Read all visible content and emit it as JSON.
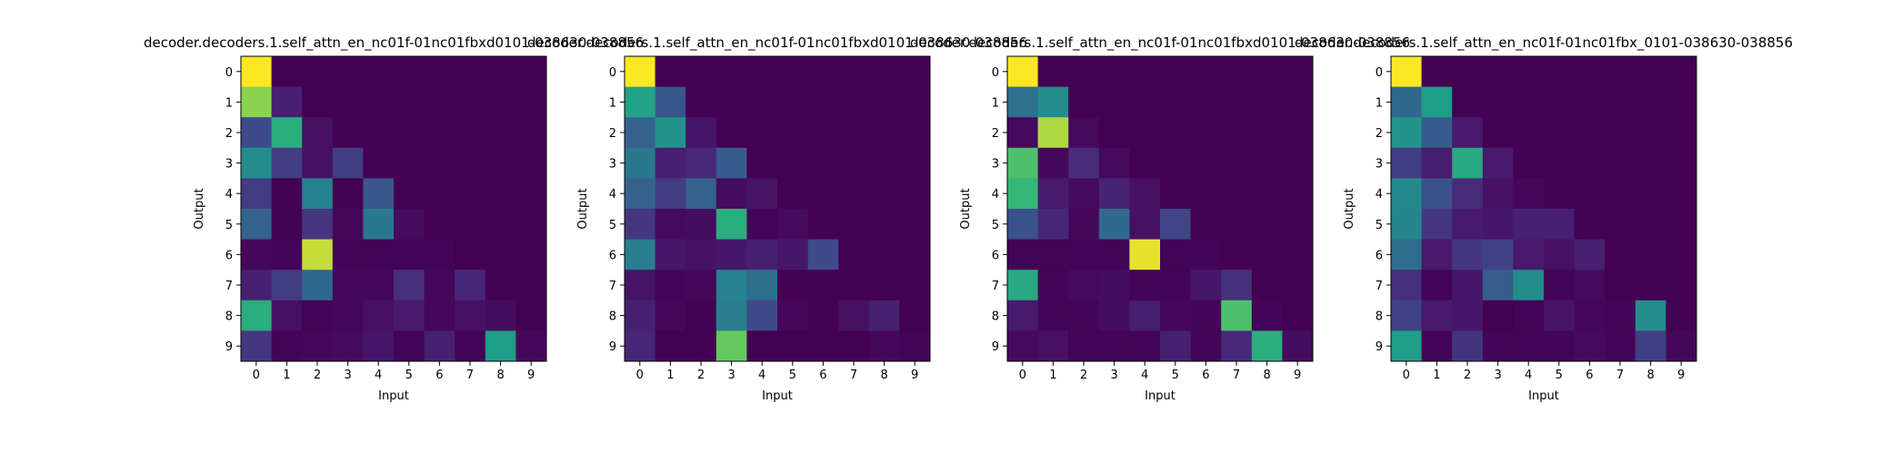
{
  "figure": {
    "background": "#ffffff"
  },
  "chart_data": [
    {
      "type": "heatmap",
      "title": "decoder.decoders.1.self_attn_en_nc01f-01nc01fbxd0101-038630-038856",
      "xlabel": "Input",
      "ylabel": "Output",
      "x_ticks": [
        "0",
        "1",
        "2",
        "3",
        "4",
        "5",
        "6",
        "7",
        "8",
        "9"
      ],
      "y_ticks": [
        "0",
        "1",
        "2",
        "3",
        "4",
        "5",
        "6",
        "7",
        "8",
        "9"
      ],
      "colormap": "viridis",
      "vmin": 0,
      "vmax": 1,
      "values": [
        [
          1.0,
          0,
          0,
          0,
          0,
          0,
          0,
          0,
          0,
          0
        ],
        [
          0.9,
          0.1,
          0,
          0,
          0,
          0,
          0,
          0,
          0,
          0
        ],
        [
          0.25,
          0.7,
          0.05,
          0,
          0,
          0,
          0,
          0,
          0,
          0
        ],
        [
          0.55,
          0.2,
          0.05,
          0.2,
          0,
          0,
          0,
          0,
          0,
          0
        ],
        [
          0.2,
          0.0,
          0.5,
          0.0,
          0.3,
          0,
          0,
          0,
          0,
          0
        ],
        [
          0.35,
          0.0,
          0.18,
          0.02,
          0.45,
          0.03,
          0,
          0,
          0,
          0
        ],
        [
          0.02,
          0.01,
          0.95,
          0.01,
          0.01,
          0.01,
          0.01,
          0,
          0,
          0
        ],
        [
          0.1,
          0.2,
          0.38,
          0.02,
          0.02,
          0.15,
          0.02,
          0.12,
          0,
          0
        ],
        [
          0.7,
          0.05,
          0.01,
          0.02,
          0.05,
          0.08,
          0.02,
          0.05,
          0.04,
          0
        ],
        [
          0.18,
          0.01,
          0.02,
          0.03,
          0.07,
          0.01,
          0.1,
          0.01,
          0.62,
          0.02
        ]
      ]
    },
    {
      "type": "heatmap",
      "title": "decoder.decoders.1.self_attn_en_nc01f-01nc01fbxd0101-038630-038856",
      "xlabel": "Input",
      "ylabel": "Output",
      "x_ticks": [
        "0",
        "1",
        "2",
        "3",
        "4",
        "5",
        "6",
        "7",
        "8",
        "9"
      ],
      "y_ticks": [
        "0",
        "1",
        "2",
        "3",
        "4",
        "5",
        "6",
        "7",
        "8",
        "9"
      ],
      "colormap": "viridis",
      "vmin": 0,
      "vmax": 1,
      "values": [
        [
          1.0,
          0,
          0,
          0,
          0,
          0,
          0,
          0,
          0,
          0
        ],
        [
          0.65,
          0.3,
          0,
          0,
          0,
          0,
          0,
          0,
          0,
          0
        ],
        [
          0.35,
          0.58,
          0.07,
          0,
          0,
          0,
          0,
          0,
          0,
          0
        ],
        [
          0.45,
          0.1,
          0.13,
          0.32,
          0,
          0,
          0,
          0,
          0,
          0
        ],
        [
          0.35,
          0.2,
          0.35,
          0.04,
          0.06,
          0,
          0,
          0,
          0,
          0
        ],
        [
          0.18,
          0.03,
          0.04,
          0.7,
          0.01,
          0.03,
          0,
          0,
          0,
          0
        ],
        [
          0.48,
          0.07,
          0.05,
          0.07,
          0.1,
          0.07,
          0.25,
          0,
          0,
          0
        ],
        [
          0.06,
          0.01,
          0.02,
          0.5,
          0.41,
          0.0,
          0.0,
          0.0,
          0,
          0
        ],
        [
          0.1,
          0.02,
          0.0,
          0.48,
          0.25,
          0.02,
          0.0,
          0.05,
          0.1,
          0
        ],
        [
          0.12,
          0.0,
          0.0,
          0.85,
          0.0,
          0.0,
          0.0,
          0.0,
          0.02,
          0.01
        ]
      ]
    },
    {
      "type": "heatmap",
      "title": "decoder.decoders.1.self_attn_en_nc01f-01nc01fbxd0101-038630-038856",
      "xlabel": "Input",
      "ylabel": "Output",
      "x_ticks": [
        "0",
        "1",
        "2",
        "3",
        "4",
        "5",
        "6",
        "7",
        "8",
        "9"
      ],
      "y_ticks": [
        "0",
        "1",
        "2",
        "3",
        "4",
        "5",
        "6",
        "7",
        "8",
        "9"
      ],
      "colormap": "viridis",
      "vmin": 0,
      "vmax": 1,
      "values": [
        [
          1.0,
          0,
          0,
          0,
          0,
          0,
          0,
          0,
          0,
          0
        ],
        [
          0.42,
          0.55,
          0,
          0,
          0,
          0,
          0,
          0,
          0,
          0
        ],
        [
          0.03,
          0.93,
          0.03,
          0,
          0,
          0,
          0,
          0,
          0,
          0
        ],
        [
          0.8,
          0.02,
          0.14,
          0.03,
          0,
          0,
          0,
          0,
          0,
          0
        ],
        [
          0.75,
          0.08,
          0.03,
          0.11,
          0.05,
          0,
          0,
          0,
          0,
          0
        ],
        [
          0.28,
          0.12,
          0.02,
          0.38,
          0.05,
          0.23,
          0,
          0,
          0,
          0
        ],
        [
          0.01,
          0.01,
          0.01,
          0.01,
          0.98,
          0.01,
          0.01,
          0,
          0,
          0
        ],
        [
          0.68,
          0.01,
          0.03,
          0.04,
          0.01,
          0.01,
          0.07,
          0.16,
          0,
          0
        ],
        [
          0.08,
          0.01,
          0.01,
          0.04,
          0.09,
          0.02,
          0.01,
          0.8,
          0.01,
          0
        ],
        [
          0.03,
          0.05,
          0.01,
          0.01,
          0.01,
          0.1,
          0.01,
          0.13,
          0.7,
          0.04
        ]
      ]
    },
    {
      "type": "heatmap",
      "title": "decoder.decoders.1.self_attn_en_nc01f-01nc01fbx_0101-038630-038856",
      "xlabel": "Input",
      "ylabel": "Output",
      "x_ticks": [
        "0",
        "1",
        "2",
        "3",
        "4",
        "5",
        "6",
        "7",
        "8",
        "9"
      ],
      "y_ticks": [
        "0",
        "1",
        "2",
        "3",
        "4",
        "5",
        "6",
        "7",
        "8",
        "9"
      ],
      "colormap": "viridis",
      "vmin": 0,
      "vmax": 1,
      "values": [
        [
          1.0,
          0,
          0,
          0,
          0,
          0,
          0,
          0,
          0,
          0
        ],
        [
          0.38,
          0.62,
          0,
          0,
          0,
          0,
          0,
          0,
          0,
          0
        ],
        [
          0.58,
          0.32,
          0.08,
          0,
          0,
          0,
          0,
          0,
          0,
          0
        ],
        [
          0.2,
          0.09,
          0.68,
          0.08,
          0,
          0,
          0,
          0,
          0,
          0
        ],
        [
          0.53,
          0.28,
          0.14,
          0.05,
          0.02,
          0,
          0,
          0,
          0,
          0
        ],
        [
          0.52,
          0.18,
          0.08,
          0.07,
          0.1,
          0.1,
          0,
          0,
          0,
          0
        ],
        [
          0.4,
          0.08,
          0.18,
          0.22,
          0.08,
          0.05,
          0.1,
          0,
          0,
          0
        ],
        [
          0.15,
          0.01,
          0.07,
          0.33,
          0.55,
          0.01,
          0.03,
          0.0,
          0,
          0
        ],
        [
          0.22,
          0.08,
          0.07,
          0.0,
          0.01,
          0.06,
          0.02,
          0.01,
          0.55,
          0
        ],
        [
          0.62,
          0.01,
          0.17,
          0.01,
          0.01,
          0.01,
          0.03,
          0.01,
          0.21,
          0.02
        ]
      ]
    }
  ]
}
